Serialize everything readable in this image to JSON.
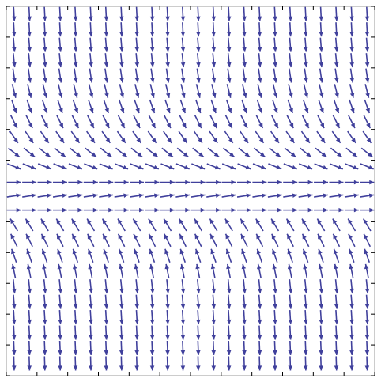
{
  "chart_data": {
    "type": "vector_field",
    "color": "#40409c",
    "xlim": [
      -3,
      3
    ],
    "ylim": [
      -3,
      3
    ],
    "xticks": [
      -3,
      -2.5,
      -2,
      -1.5,
      -1,
      -0.5,
      0,
      0.5,
      1,
      1.5,
      2,
      2.5,
      3
    ],
    "yticks": [
      -3,
      -2.5,
      -2,
      -1.5,
      -1,
      -0.5,
      0,
      0.5,
      1,
      1.5,
      2,
      2.5,
      3
    ],
    "x": [
      -2.875,
      -2.625,
      -2.375,
      -2.125,
      -1.875,
      -1.625,
      -1.375,
      -1.125,
      -0.875,
      -0.625,
      -0.375,
      -0.125,
      0.125,
      0.375,
      0.625,
      0.875,
      1.125,
      1.375,
      1.625,
      1.875,
      2.125,
      2.375,
      2.625,
      2.875
    ],
    "y": [
      2.875,
      2.625,
      2.375,
      2.125,
      1.875,
      1.625,
      1.375,
      1.125,
      0.875,
      0.625,
      0.4,
      0.14,
      -0.08,
      -0.31,
      -0.55,
      -0.8,
      -1.05,
      -1.3,
      -1.55,
      -1.8,
      -2.05,
      -2.3,
      -2.55,
      -2.8
    ],
    "u": [
      0.05,
      0.05,
      0.08,
      0.1,
      0.15,
      0.25,
      0.35,
      0.5,
      0.7,
      1,
      1,
      1,
      1,
      1,
      -0.6,
      -0.5,
      -0.35,
      -0.2,
      0.1,
      0.08,
      0.06,
      0.05,
      0.04,
      0.03
    ],
    "v": [
      -1,
      -1,
      -1,
      -1,
      -1,
      -1,
      -1,
      -1,
      -1,
      -0.8,
      -0.4,
      0,
      0.15,
      0,
      1,
      1,
      1,
      1,
      -1,
      -1,
      -1,
      -1,
      -1,
      -1
    ]
  }
}
